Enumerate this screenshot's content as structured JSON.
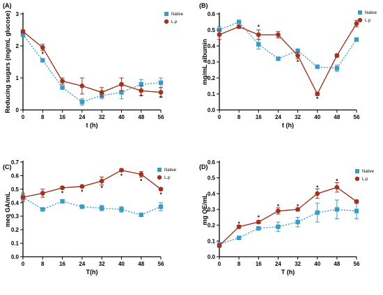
{
  "colors": {
    "native": "#3b9ac6",
    "lp": "#a0331f",
    "axis": "#000000"
  },
  "chart_data": [
    {
      "panel": "(A)",
      "type": "line",
      "xlabel": "t (h)",
      "ylabel": "Reducing sugars (mg/mL glucose)",
      "x": [
        0,
        8,
        16,
        24,
        32,
        40,
        48,
        56
      ],
      "xlim": [
        0,
        56
      ],
      "ylim": [
        0,
        3
      ],
      "yticks": [
        0,
        1,
        2,
        3
      ],
      "ytick_labels": [
        "0",
        "1",
        "2",
        "3"
      ],
      "series": [
        {
          "name": "Native",
          "values": [
            2.35,
            1.55,
            0.7,
            0.25,
            0.45,
            0.55,
            0.8,
            0.85
          ],
          "errors": [
            0.05,
            0.05,
            0.05,
            0.1,
            0.1,
            0.2,
            0.15,
            0.15
          ]
        },
        {
          "name": "L.p",
          "values": [
            2.45,
            1.95,
            0.9,
            0.75,
            0.55,
            0.8,
            0.6,
            0.55
          ],
          "errors": [
            0.05,
            0.1,
            0.1,
            0.25,
            0.15,
            0.2,
            0.15,
            0.15
          ]
        }
      ],
      "significance": [
        {
          "x": 8,
          "y": 1.75
        },
        {
          "x": 48,
          "y": 0.42
        },
        {
          "x": 56,
          "y": 0.38
        }
      ],
      "legend_position": "top-right"
    },
    {
      "panel": "(B)",
      "type": "line",
      "xlabel": "t (h)",
      "ylabel": "mg/mL albumin",
      "x": [
        0,
        8,
        16,
        24,
        32,
        40,
        48,
        56
      ],
      "xlim": [
        0,
        56
      ],
      "ylim": [
        0,
        0.6
      ],
      "yticks": [
        0,
        0.1,
        0.2,
        0.3,
        0.4,
        0.5,
        0.6
      ],
      "ytick_labels": [
        "0.0",
        "0.1",
        "0.2",
        "0.3",
        "0.4",
        "0.5",
        "0.6"
      ],
      "series": [
        {
          "name": "Native",
          "values": [
            0.5,
            0.55,
            0.41,
            0.32,
            0.37,
            0.27,
            0.26,
            0.44
          ],
          "errors": [
            0.02,
            0.01,
            0.03,
            0.01,
            0.01,
            0.005,
            0.02,
            0.01
          ]
        },
        {
          "name": "L.p",
          "values": [
            0.47,
            0.52,
            0.47,
            0.47,
            0.34,
            0.1,
            0.34,
            0.54
          ],
          "errors": [
            0.03,
            0.01,
            0.03,
            0.02,
            0.02,
            0.01,
            0.01,
            0.02
          ]
        }
      ],
      "significance": [
        {
          "x": 16,
          "y": 0.52
        },
        {
          "x": 32,
          "y": 0.3
        },
        {
          "x": 40,
          "y": 0.07
        }
      ],
      "legend_position": "top-right"
    },
    {
      "panel": "(C)",
      "type": "line",
      "xlabel": "T(h)",
      "ylabel": "meq GA/mL",
      "x": [
        0,
        8,
        16,
        24,
        32,
        40,
        48,
        56
      ],
      "xlim": [
        0,
        56
      ],
      "ylim": [
        0,
        0.7
      ],
      "yticks": [
        0,
        0.1,
        0.2,
        0.3,
        0.4,
        0.5,
        0.6,
        0.7
      ],
      "ytick_labels": [
        "0.0",
        "0.1",
        "0.2",
        "0.3",
        "0.4",
        "0.5",
        "0.6",
        "0.7"
      ],
      "series": [
        {
          "name": "Native",
          "values": [
            0.44,
            0.35,
            0.41,
            0.37,
            0.36,
            0.35,
            0.31,
            0.37
          ],
          "errors": [
            0.02,
            0.01,
            0.01,
            0.01,
            0.02,
            0.02,
            0.01,
            0.03
          ]
        },
        {
          "name": "L.p",
          "values": [
            0.44,
            0.47,
            0.51,
            0.52,
            0.56,
            0.64,
            0.61,
            0.5
          ],
          "errors": [
            0.03,
            0.03,
            0.01,
            0.01,
            0.03,
            0.01,
            0.02,
            0.01
          ]
        }
      ],
      "significance": [
        {
          "x": 16,
          "y": 0.47
        },
        {
          "x": 24,
          "y": 0.48
        },
        {
          "x": 32,
          "y": 0.51
        },
        {
          "x": 40,
          "y": 0.6
        },
        {
          "x": 48,
          "y": 0.56
        },
        {
          "x": 56,
          "y": 0.46
        }
      ],
      "legend_position": "top-right"
    },
    {
      "panel": "(D)",
      "type": "line",
      "xlabel": "T (h)",
      "ylabel": "mg QE/mL",
      "x": [
        0,
        8,
        16,
        24,
        32,
        40,
        48,
        56
      ],
      "xlim": [
        0,
        56
      ],
      "ylim": [
        0,
        0.6
      ],
      "yticks": [
        0,
        0.1,
        0.2,
        0.3,
        0.4,
        0.5,
        0.6
      ],
      "ytick_labels": [
        "0.0",
        "0.1",
        "0.2",
        "0.3",
        "0.4",
        "0.5",
        "0.6"
      ],
      "series": [
        {
          "name": "Native",
          "values": [
            0.08,
            0.12,
            0.18,
            0.19,
            0.22,
            0.28,
            0.3,
            0.29
          ],
          "errors": [
            0.01,
            0.01,
            0.01,
            0.03,
            0.03,
            0.06,
            0.06,
            0.05
          ]
        },
        {
          "name": "L.p",
          "values": [
            0.07,
            0.19,
            0.22,
            0.29,
            0.3,
            0.4,
            0.44,
            0.35
          ],
          "errors": [
            0.01,
            0.01,
            0.01,
            0.02,
            0.01,
            0.03,
            0.03,
            0.01
          ]
        }
      ],
      "significance": [
        {
          "x": 8,
          "y": 0.21
        },
        {
          "x": 16,
          "y": 0.25
        },
        {
          "x": 24,
          "y": 0.32
        },
        {
          "x": 32,
          "y": 0.32
        },
        {
          "x": 40,
          "y": 0.44
        },
        {
          "x": 48,
          "y": 0.48
        }
      ],
      "legend_position": "top-right"
    }
  ],
  "xtick_labels": [
    "0",
    "8",
    "16",
    "24",
    "32",
    "40",
    "48",
    "56"
  ],
  "legend": {
    "native": "Native",
    "lp": "L.p"
  },
  "significance_mark": "*"
}
